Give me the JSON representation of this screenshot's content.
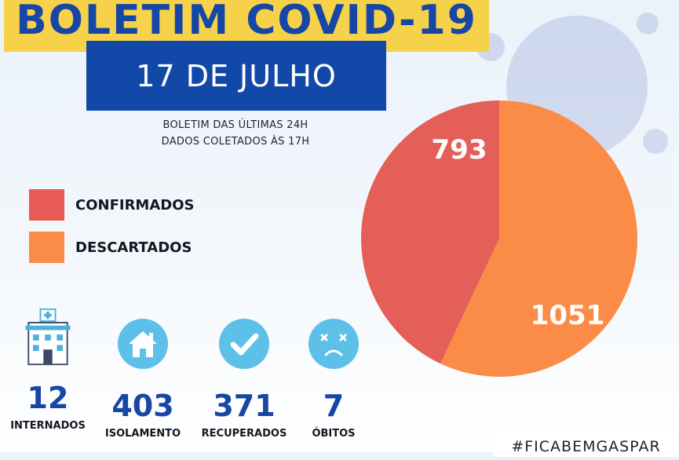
{
  "header": {
    "title": "BOLETIM COVID-19",
    "date": "17 DE JULHO",
    "info_line1": "BOLETIM DAS ÚLTIMAS 24H",
    "info_line2": "DADOS COLETADOS ÀS  17H"
  },
  "legend": [
    {
      "label": "CONFIRMADOS",
      "color": "#e85a55"
    },
    {
      "label": "DESCARTADOS",
      "color": "#fb8c47"
    }
  ],
  "chart_data": {
    "type": "pie",
    "title": "",
    "slices": [
      {
        "label": "CONFIRMADOS",
        "value": 793,
        "display": "793",
        "color": "#e45f58"
      },
      {
        "label": "DESCARTADOS",
        "value": 1051,
        "display": "1051",
        "color": "#fb8c47"
      }
    ],
    "legend_position": "left"
  },
  "stats": [
    {
      "value": "12",
      "label": "INTERNADOS",
      "icon": "hospital-icon"
    },
    {
      "value": "403",
      "label": "ISOLAMENTO",
      "icon": "house-icon"
    },
    {
      "value": "371",
      "label": "RECUPERADOS",
      "icon": "checkmark-icon"
    },
    {
      "value": "7",
      "label": "ÓBITOS",
      "icon": "sad-face-icon"
    }
  ],
  "hashtag": "#FICABEMGASPAR",
  "colors": {
    "brand_blue": "#1646a6",
    "title_yellow": "#f6d24a",
    "icon_circle": "#5cc0e8"
  }
}
